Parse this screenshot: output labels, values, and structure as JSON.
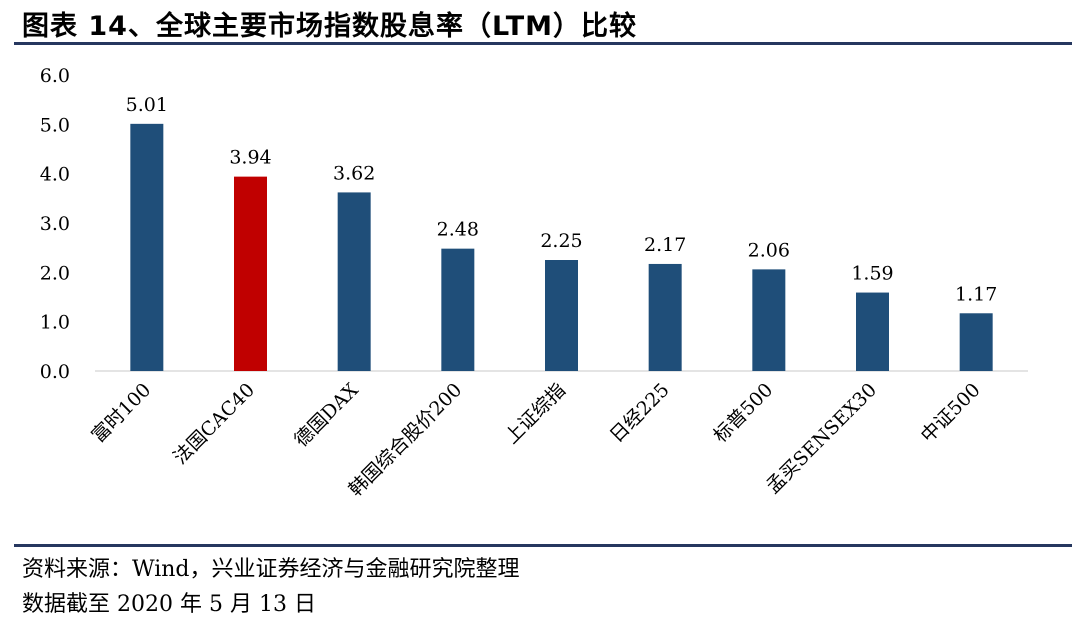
{
  "title": "图表 14、全球主要市场指数股息率（LTM）比较",
  "footer": {
    "source": "资料来源：Wind，兴业证券经济与金融研究院整理",
    "date_note": "数据截至 2020 年 5 月 13 日"
  },
  "colors": {
    "bar": "#1f4e79",
    "highlight": "#c00000",
    "rule": "#26375f"
  },
  "chart_data": {
    "type": "bar",
    "categories": [
      "富时100",
      "法国CAC40",
      "德国DAX",
      "韩国综合股价200",
      "上证综指",
      "日经225",
      "标普500",
      "孟买SENSEX30",
      "中证500"
    ],
    "values": [
      5.01,
      3.94,
      3.62,
      2.48,
      2.25,
      2.17,
      2.06,
      1.59,
      1.17
    ],
    "value_labels": [
      "5.01",
      "3.94",
      "3.62",
      "2.48",
      "2.25",
      "2.17",
      "2.06",
      "1.59",
      "1.17"
    ],
    "highlight_index": 1,
    "ylim": [
      0,
      6
    ],
    "yticks": [
      "0.0",
      "1.0",
      "2.0",
      "3.0",
      "4.0",
      "5.0",
      "6.0"
    ],
    "grid": false,
    "legend": "none"
  }
}
